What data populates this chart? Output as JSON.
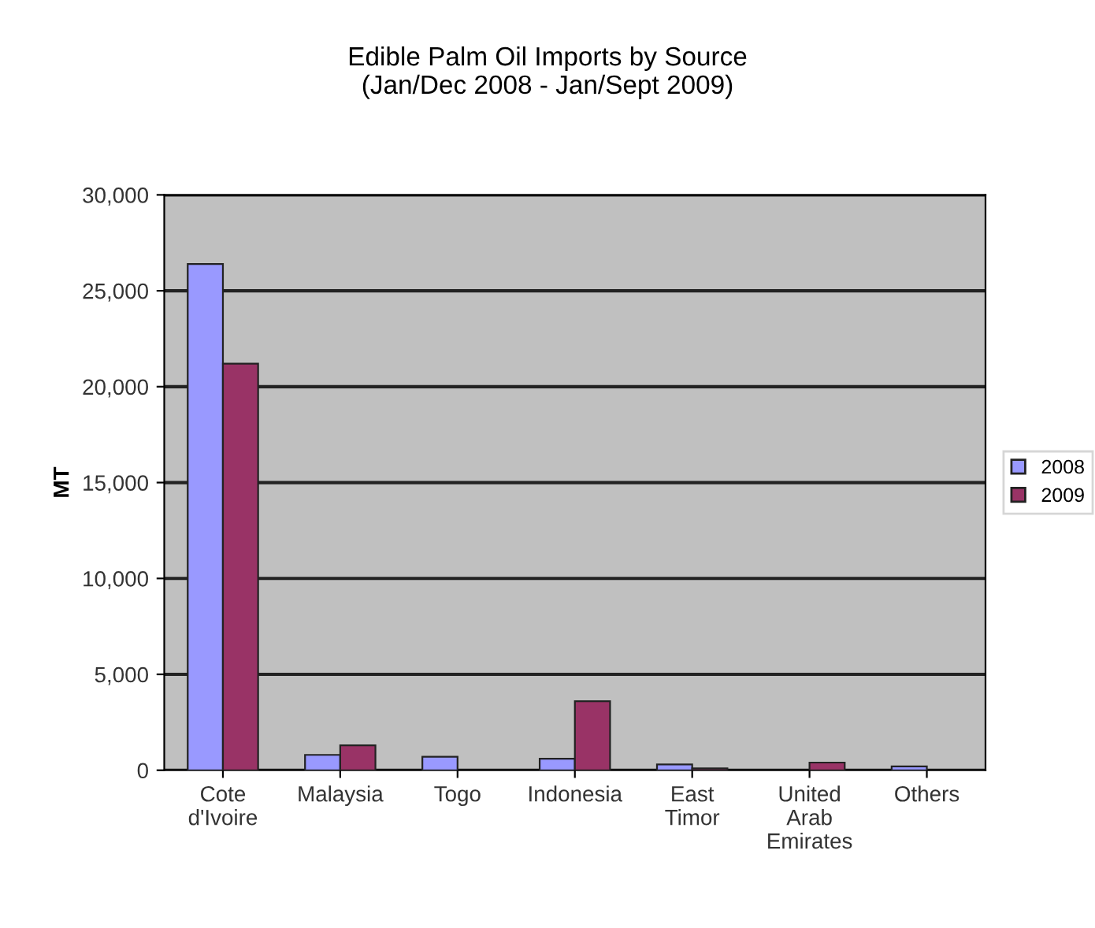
{
  "chart_data": {
    "type": "bar",
    "title": "Edible Palm Oil Imports by Source\n(Jan/Dec 2008 - Jan/Sept 2009)",
    "ylabel": "MT",
    "categories": [
      "Cote\nd'Ivoire",
      "Malaysia",
      "Togo",
      "Indonesia",
      "East\nTimor",
      "United\nArab\nEmirates",
      "Others"
    ],
    "series": [
      {
        "name": "2008",
        "color": "#9999ff",
        "values": [
          26400,
          800,
          700,
          600,
          300,
          null,
          200
        ]
      },
      {
        "name": "2009",
        "color": "#993366",
        "values": [
          21200,
          1300,
          null,
          3600,
          100,
          400,
          null
        ]
      }
    ],
    "ylim": [
      0,
      30000
    ],
    "yticks": [
      {
        "value": 0,
        "label": "0"
      },
      {
        "value": 5000,
        "label": "5,000"
      },
      {
        "value": 10000,
        "label": "10,000"
      },
      {
        "value": 15000,
        "label": "15,000"
      },
      {
        "value": 20000,
        "label": "20,000"
      },
      {
        "value": 25000,
        "label": "25,000"
      },
      {
        "value": 30000,
        "label": "30,000"
      }
    ],
    "grid": "y",
    "legend": "right"
  }
}
